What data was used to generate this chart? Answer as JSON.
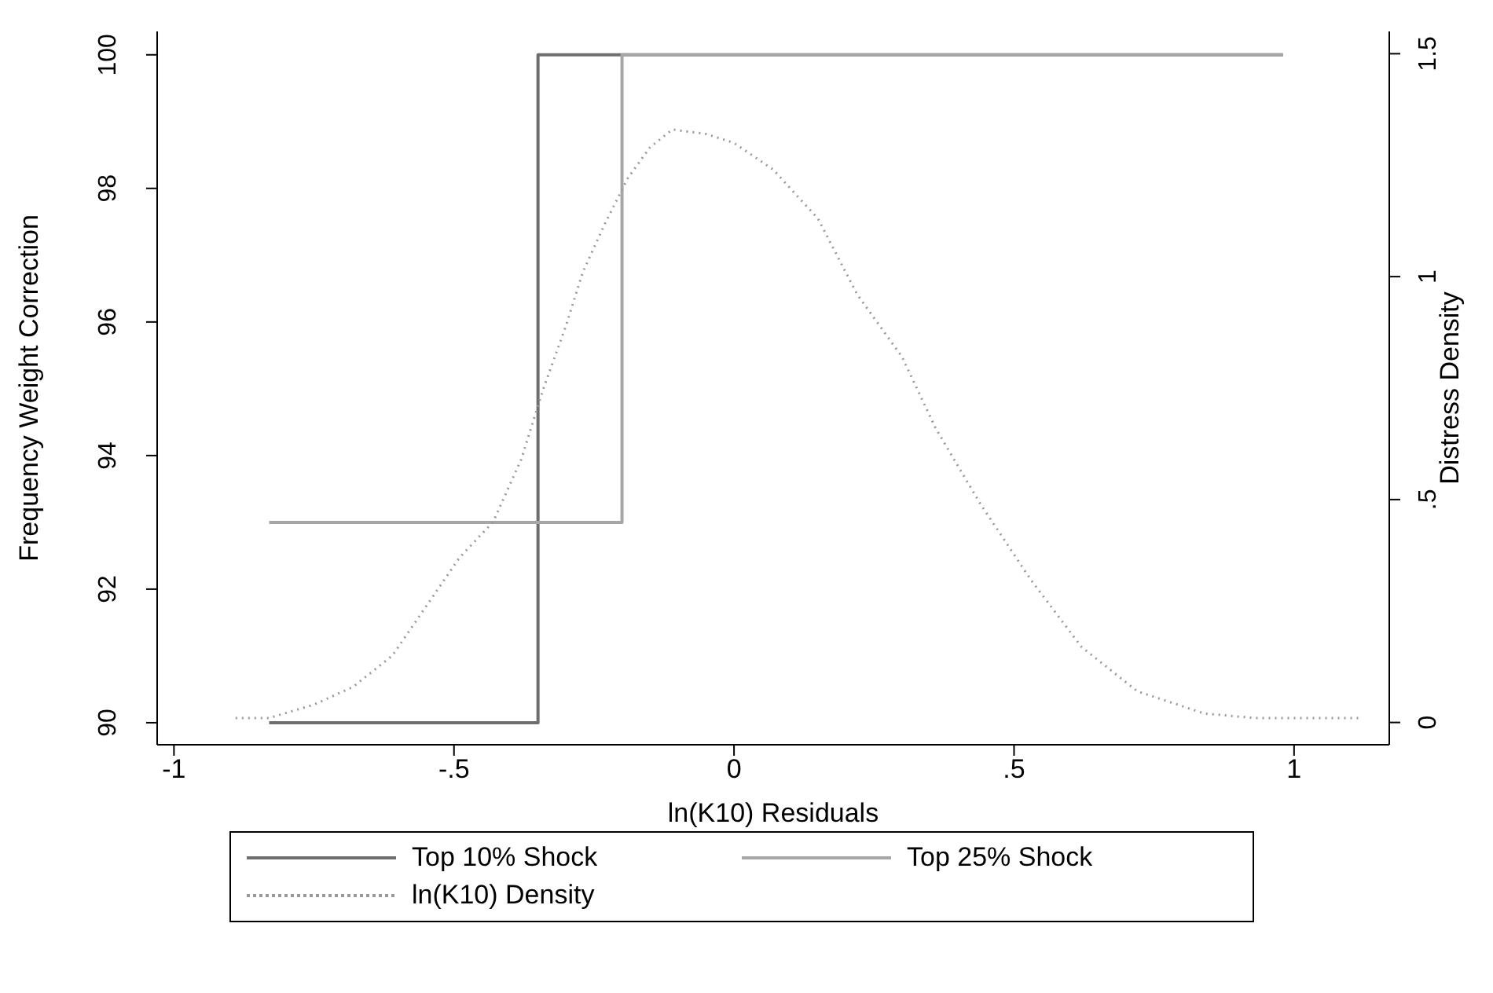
{
  "chart_data": {
    "type": "line",
    "xlabel": "ln(K10) Residuals",
    "ylabel": "Frequency Weight Correction",
    "y2label": "Distress Density",
    "xlim": [
      -1.03,
      1.17
    ],
    "xticks": [
      {
        "value": -1,
        "label": "-1"
      },
      {
        "value": -0.5,
        "label": "-.5"
      },
      0,
      {
        "value": 0.5,
        "label": ".5"
      },
      1
    ],
    "ylim": [
      89.67,
      100.35
    ],
    "yticks": [
      90,
      92,
      94,
      96,
      98,
      100
    ],
    "y2lim": [
      -0.05,
      1.55
    ],
    "y2ticks": [
      0,
      {
        "value": 0.5,
        "label": ".5"
      },
      1,
      1.5
    ],
    "grid": false,
    "legend": "bottom",
    "series": [
      {
        "name": "Top 10% Shock",
        "type": "step",
        "color": "#6e6e6e",
        "line_style": "solid",
        "x": [
          -0.83,
          -0.35,
          0.98
        ],
        "values": [
          90,
          100,
          100
        ]
      },
      {
        "name": "Top 25% Shock",
        "type": "step",
        "color": "#a6a6a6",
        "line_style": "solid",
        "x": [
          -0.83,
          -0.2,
          0.98
        ],
        "values": [
          93,
          100,
          100
        ]
      },
      {
        "name": "ln(K10) Density",
        "type": "line",
        "axis": "y2",
        "color": "#999999",
        "line_style": "dotted",
        "x": [
          -0.89,
          -0.83,
          -0.75,
          -0.68,
          -0.61,
          -0.55,
          -0.49,
          -0.43,
          -0.38,
          -0.34,
          -0.3,
          -0.27,
          -0.23,
          -0.19,
          -0.15,
          -0.11,
          -0.05,
          0,
          0.07,
          0.15,
          0.22,
          0.3,
          0.36,
          0.44,
          0.53,
          0.62,
          0.72,
          0.84,
          0.93,
          1.12
        ],
        "values": [
          0.01,
          0.01,
          0.04,
          0.08,
          0.15,
          0.26,
          0.37,
          0.45,
          0.59,
          0.75,
          0.89,
          1.01,
          1.12,
          1.22,
          1.29,
          1.33,
          1.32,
          1.3,
          1.24,
          1.13,
          0.96,
          0.82,
          0.66,
          0.49,
          0.32,
          0.17,
          0.07,
          0.02,
          0.01,
          0.01
        ]
      }
    ]
  }
}
